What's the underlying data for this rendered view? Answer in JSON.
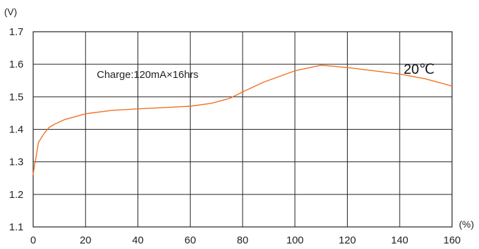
{
  "chart_data": {
    "type": "line",
    "title": "",
    "x_unit": "(%)",
    "y_unit": "(V)",
    "xlim": [
      0,
      160
    ],
    "ylim": [
      1.1,
      1.7
    ],
    "x_ticks": [
      0,
      20,
      40,
      60,
      80,
      100,
      120,
      140,
      160
    ],
    "y_ticks": [
      1.1,
      1.2,
      1.3,
      1.4,
      1.5,
      1.6,
      1.7
    ],
    "x_tick_labels": [
      "0",
      "20",
      "40",
      "60",
      "80",
      "100",
      "120",
      "140",
      "160"
    ],
    "y_tick_labels": [
      "1.1",
      "1.2",
      "1.3",
      "1.4",
      "1.5",
      "1.6",
      "1.7"
    ],
    "grid": true,
    "annotations": {
      "condition": "Charge:120mA×16hrs",
      "temperature": "20℃"
    },
    "series": [
      {
        "color": "#f07020",
        "x": [
          0,
          0.5,
          1,
          2,
          4,
          6,
          8,
          12,
          20,
          30,
          40,
          50,
          60,
          68,
          75,
          80,
          88,
          100,
          110,
          120,
          130,
          140,
          150,
          160
        ],
        "y": [
          1.26,
          1.29,
          1.31,
          1.36,
          1.385,
          1.405,
          1.415,
          1.43,
          1.448,
          1.458,
          1.463,
          1.467,
          1.471,
          1.48,
          1.495,
          1.515,
          1.545,
          1.58,
          1.597,
          1.59,
          1.58,
          1.57,
          1.555,
          1.533
        ]
      }
    ]
  }
}
